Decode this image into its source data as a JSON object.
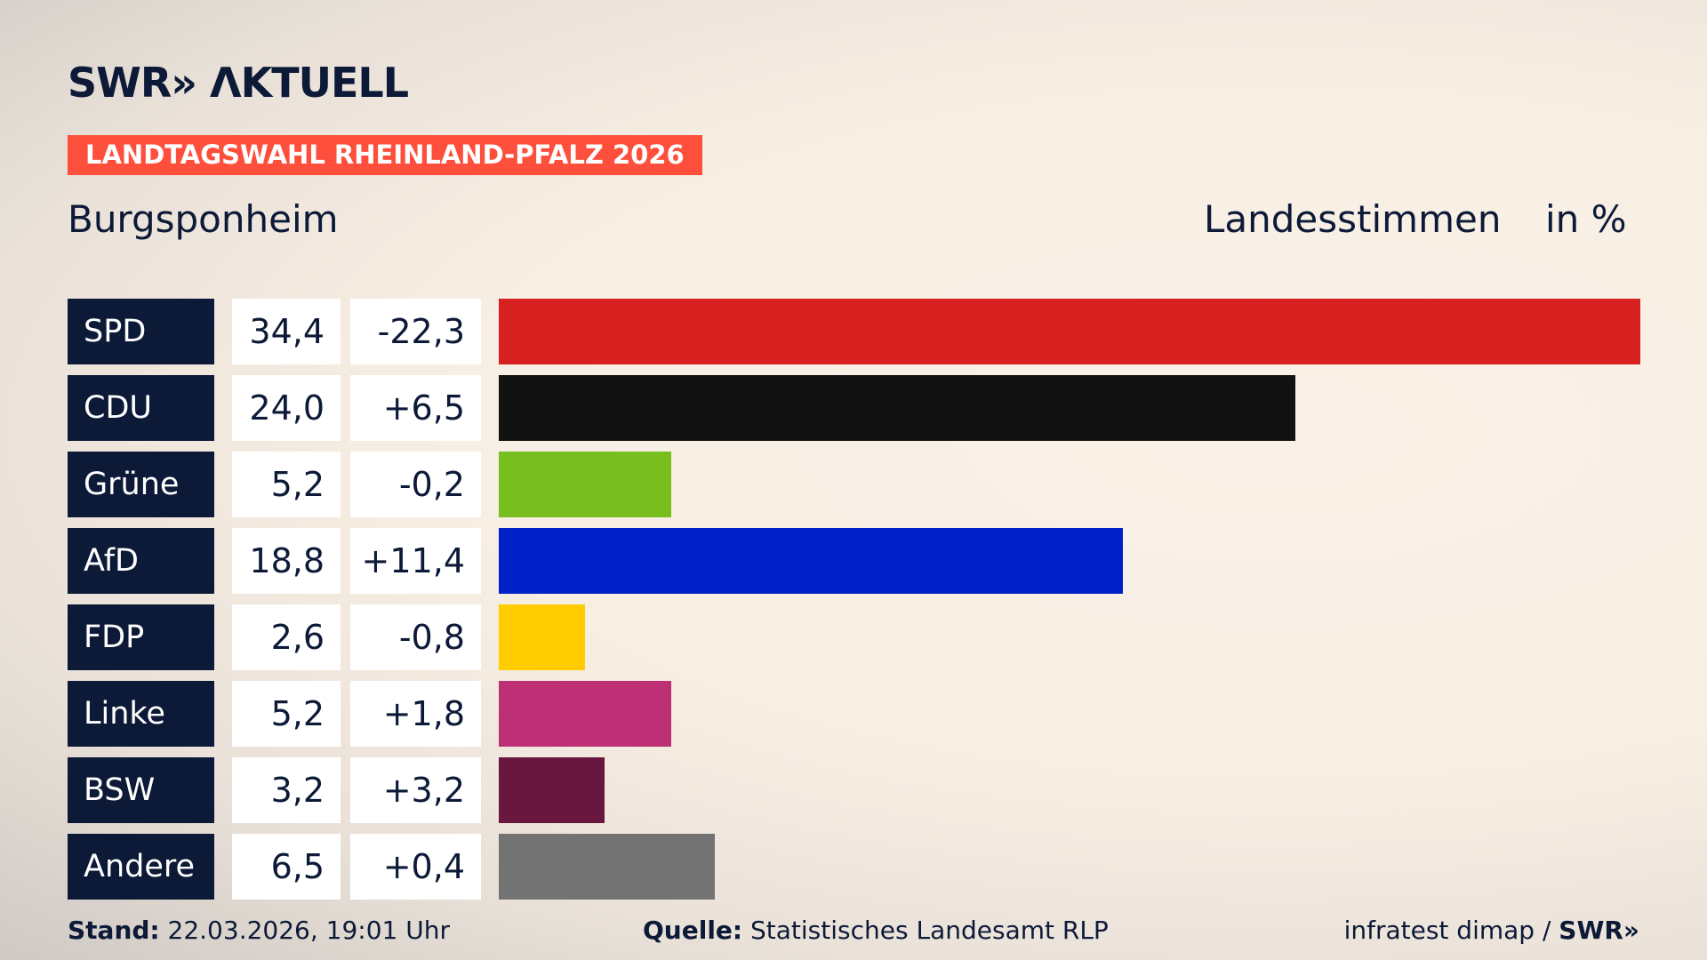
{
  "logo": "SWR» AKTUELL",
  "banner": "LANDTAGSWAHL RHEINLAND-PFALZ 2026",
  "place": "Burgsponheim",
  "header_votes": "Landesstimmen",
  "header_unit": "in %",
  "chart_data": {
    "type": "bar",
    "orientation": "horizontal",
    "categories": [
      "SPD",
      "CDU",
      "Grüne",
      "AfD",
      "FDP",
      "Linke",
      "BSW",
      "Andere"
    ],
    "values": [
      34.4,
      24.0,
      5.2,
      18.8,
      2.6,
      5.2,
      3.2,
      6.5
    ],
    "value_labels": [
      "34,4",
      "24,0",
      "5,2",
      "18,8",
      "2,6",
      "5,2",
      "3,2",
      "6,5"
    ],
    "change_labels": [
      "-22,3",
      "+6,5",
      "-0,2",
      "+11,4",
      "-0,8",
      "+1,8",
      "+3,2",
      "+0,4"
    ],
    "colors": [
      "#d92020",
      "#121212",
      "#78be1e",
      "#0021c8",
      "#ffcc00",
      "#bd3075",
      "#6a173f",
      "#737373"
    ],
    "xlim": [
      0,
      34.4
    ]
  },
  "footer": {
    "stand_label": "Stand:",
    "stand_value": "22.03.2026, 19:01 Uhr",
    "source_label": "Quelle:",
    "source_value": "Statistisches Landesamt RLP",
    "credit": "infratest dimap / ",
    "credit_brand": "SWR»"
  }
}
